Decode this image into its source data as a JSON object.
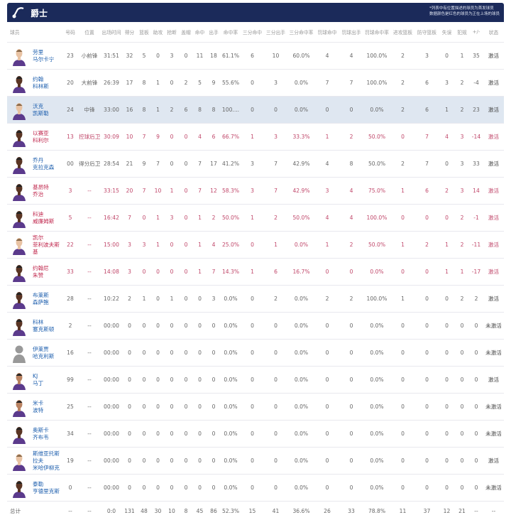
{
  "team": {
    "name": "爵士",
    "logo_icon": "jazz-note-logo",
    "notes": [
      "*列表中有位置描述的球员为首发球员",
      "数据颜色是红色的球员为正在上场的球员"
    ],
    "header_bg": "#1b2a5a"
  },
  "colors": {
    "on_court": "#c0284e",
    "player_link": "#1e5fae",
    "highlight_row": "#dfe7f1"
  },
  "columns": [
    "球员",
    "号码",
    "位置",
    "出场时间",
    "得分",
    "篮板",
    "助攻",
    "抢断",
    "盖帽",
    "命中",
    "出手",
    "命中率",
    "三分命中",
    "三分出手",
    "三分命中率",
    "罚球命中",
    "罚球出手",
    "罚球命中率",
    "进攻篮板",
    "防守篮板",
    "失误",
    "犯规",
    "+/-",
    "状态"
  ],
  "players": [
    {
      "name": [
        "劳里",
        "马尔卡宁"
      ],
      "photo": "light",
      "on_court": false,
      "highlight": false,
      "stats": [
        "23",
        "小前锋",
        "31:51",
        "32",
        "5",
        "0",
        "3",
        "0",
        "11",
        "18",
        "61.1%",
        "6",
        "10",
        "60.0%",
        "4",
        "4",
        "100.0%",
        "2",
        "3",
        "0",
        "1",
        "35",
        "激活"
      ]
    },
    {
      "name": [
        "约翰",
        "科林斯"
      ],
      "photo": "dark",
      "on_court": false,
      "highlight": false,
      "stats": [
        "20",
        "大前锋",
        "26:39",
        "17",
        "8",
        "1",
        "0",
        "2",
        "5",
        "9",
        "55.6%",
        "0",
        "3",
        "0.0%",
        "7",
        "7",
        "100.0%",
        "2",
        "6",
        "3",
        "2",
        "-4",
        "激活"
      ]
    },
    {
      "name": [
        "沃克",
        "凯斯勒"
      ],
      "photo": "light",
      "on_court": false,
      "highlight": true,
      "stats": [
        "24",
        "中锋",
        "33:00",
        "16",
        "8",
        "1",
        "2",
        "6",
        "8",
        "8",
        "100....",
        "0",
        "0",
        "0.0%",
        "0",
        "0",
        "0.0%",
        "2",
        "6",
        "1",
        "2",
        "23",
        "激活"
      ]
    },
    {
      "name": [
        "以赛亚",
        "科利尔"
      ],
      "photo": "dark",
      "on_court": true,
      "highlight": false,
      "stats": [
        "13",
        "控球后卫",
        "30:09",
        "10",
        "7",
        "9",
        "0",
        "0",
        "4",
        "6",
        "66.7%",
        "1",
        "3",
        "33.3%",
        "1",
        "2",
        "50.0%",
        "0",
        "7",
        "4",
        "3",
        "-14",
        "激活"
      ]
    },
    {
      "name": [
        "乔丹",
        "克拉克森"
      ],
      "photo": "dark",
      "on_court": false,
      "highlight": false,
      "stats": [
        "00",
        "得分后卫",
        "28:54",
        "21",
        "9",
        "7",
        "0",
        "0",
        "7",
        "17",
        "41.2%",
        "3",
        "7",
        "42.9%",
        "4",
        "8",
        "50.0%",
        "2",
        "7",
        "0",
        "3",
        "33",
        "激活"
      ]
    },
    {
      "name": [
        "基昂特",
        "乔治"
      ],
      "photo": "dark",
      "on_court": true,
      "highlight": false,
      "stats": [
        "3",
        "--",
        "33:15",
        "20",
        "7",
        "10",
        "1",
        "0",
        "7",
        "12",
        "58.3%",
        "3",
        "7",
        "42.9%",
        "3",
        "4",
        "75.0%",
        "1",
        "6",
        "2",
        "3",
        "14",
        "激活"
      ]
    },
    {
      "name": [
        "科迪",
        "威廉姆斯"
      ],
      "photo": "dark",
      "on_court": true,
      "highlight": false,
      "stats": [
        "5",
        "--",
        "16:42",
        "7",
        "0",
        "1",
        "3",
        "0",
        "1",
        "2",
        "50.0%",
        "1",
        "2",
        "50.0%",
        "4",
        "4",
        "100.0%",
        "0",
        "0",
        "0",
        "2",
        "-1",
        "激活"
      ]
    },
    {
      "name": [
        "凯尔",
        "菲利波夫斯基"
      ],
      "photo": "light",
      "on_court": true,
      "highlight": false,
      "stats": [
        "22",
        "--",
        "15:00",
        "3",
        "3",
        "1",
        "0",
        "0",
        "1",
        "4",
        "25.0%",
        "0",
        "1",
        "0.0%",
        "1",
        "2",
        "50.0%",
        "1",
        "2",
        "1",
        "2",
        "-11",
        "激活"
      ]
    },
    {
      "name": [
        "约翰尼",
        "朱赞"
      ],
      "photo": "dark",
      "on_court": true,
      "highlight": false,
      "stats": [
        "33",
        "--",
        "14:08",
        "3",
        "0",
        "0",
        "0",
        "0",
        "1",
        "7",
        "14.3%",
        "1",
        "6",
        "16.7%",
        "0",
        "0",
        "0.0%",
        "0",
        "0",
        "1",
        "1",
        "-17",
        "激活"
      ]
    },
    {
      "name": [
        "布莱斯",
        "森萨鲍"
      ],
      "photo": "dark",
      "on_court": false,
      "highlight": false,
      "stats": [
        "28",
        "--",
        "10:22",
        "2",
        "1",
        "0",
        "1",
        "0",
        "0",
        "3",
        "0.0%",
        "0",
        "2",
        "0.0%",
        "2",
        "2",
        "100.0%",
        "1",
        "0",
        "0",
        "2",
        "2",
        "激活"
      ]
    },
    {
      "name": [
        "科林",
        "塞克斯顿"
      ],
      "photo": "dark",
      "on_court": false,
      "highlight": false,
      "stats": [
        "2",
        "--",
        "00:00",
        "0",
        "0",
        "0",
        "0",
        "0",
        "0",
        "0",
        "0.0%",
        "0",
        "0",
        "0.0%",
        "0",
        "0",
        "0.0%",
        "0",
        "0",
        "0",
        "0",
        "0",
        "未激活"
      ]
    },
    {
      "name": [
        "伊莱贾",
        "哈克利斯"
      ],
      "photo": "silhouette",
      "on_court": false,
      "highlight": false,
      "stats": [
        "16",
        "--",
        "00:00",
        "0",
        "0",
        "0",
        "0",
        "0",
        "0",
        "0",
        "0.0%",
        "0",
        "0",
        "0.0%",
        "0",
        "0",
        "0.0%",
        "0",
        "0",
        "0",
        "0",
        "0",
        "未激活"
      ]
    },
    {
      "name": [
        "KJ",
        "马丁"
      ],
      "photo": "medium",
      "on_court": false,
      "highlight": false,
      "stats": [
        "99",
        "--",
        "00:00",
        "0",
        "0",
        "0",
        "0",
        "0",
        "0",
        "0",
        "0.0%",
        "0",
        "0",
        "0.0%",
        "0",
        "0",
        "0.0%",
        "0",
        "0",
        "0",
        "0",
        "0",
        "激活"
      ]
    },
    {
      "name": [
        "米卡",
        "波特"
      ],
      "photo": "medium",
      "on_court": false,
      "highlight": false,
      "stats": [
        "25",
        "--",
        "00:00",
        "0",
        "0",
        "0",
        "0",
        "0",
        "0",
        "0",
        "0.0%",
        "0",
        "0",
        "0.0%",
        "0",
        "0",
        "0.0%",
        "0",
        "0",
        "0",
        "0",
        "0",
        "未激活"
      ]
    },
    {
      "name": [
        "奥斯卡",
        "齐布韦"
      ],
      "photo": "dark",
      "on_court": false,
      "highlight": false,
      "stats": [
        "34",
        "--",
        "00:00",
        "0",
        "0",
        "0",
        "0",
        "0",
        "0",
        "0",
        "0.0%",
        "0",
        "0",
        "0.0%",
        "0",
        "0",
        "0.0%",
        "0",
        "0",
        "0",
        "0",
        "0",
        "未激活"
      ]
    },
    {
      "name": [
        "斯维亚托斯拉夫",
        "米哈伊柳克"
      ],
      "photo": "light",
      "on_court": false,
      "highlight": false,
      "stats": [
        "19",
        "--",
        "00:00",
        "0",
        "0",
        "0",
        "0",
        "0",
        "0",
        "0",
        "0.0%",
        "0",
        "0",
        "0.0%",
        "0",
        "0",
        "0.0%",
        "0",
        "0",
        "0",
        "0",
        "0",
        "激活"
      ]
    },
    {
      "name": [
        "泰勒",
        "亨德里克斯"
      ],
      "photo": "dark",
      "on_court": false,
      "highlight": false,
      "stats": [
        "0",
        "--",
        "00:00",
        "0",
        "0",
        "0",
        "0",
        "0",
        "0",
        "0",
        "0.0%",
        "0",
        "0",
        "0.0%",
        "0",
        "0",
        "0.0%",
        "0",
        "0",
        "0",
        "0",
        "0",
        "未激活"
      ]
    }
  ],
  "totals": {
    "label": "总计",
    "stats": [
      "--",
      "--",
      "0:0",
      "131",
      "48",
      "30",
      "10",
      "8",
      "45",
      "86",
      "52.3%",
      "15",
      "41",
      "36.6%",
      "26",
      "33",
      "78.8%",
      "11",
      "37",
      "12",
      "21",
      "--",
      "--"
    ]
  }
}
